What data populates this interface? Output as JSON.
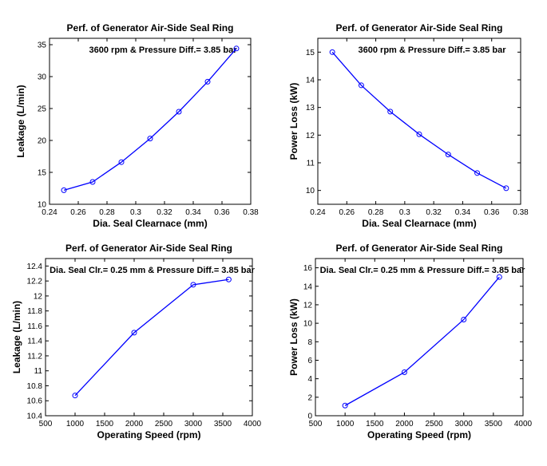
{
  "chart_data": [
    {
      "type": "line",
      "title": "Perf. of Generator Air-Side Seal Ring",
      "annotation": "3600 rpm & Pressure Diff.= 3.85 bar",
      "xlabel": "Dia. Seal Clearnace (mm)",
      "ylabel": "Leakage (L/min)",
      "xlim": [
        0.24,
        0.38
      ],
      "ylim": [
        10,
        36
      ],
      "xticks": [
        0.24,
        0.26,
        0.28,
        0.3,
        0.32,
        0.34,
        0.36,
        0.38
      ],
      "xtick_labels": [
        "0.24",
        "0.26",
        "0.28",
        "0.3",
        "0.32",
        "0.34",
        "0.36",
        "0.38"
      ],
      "yticks": [
        10,
        15,
        20,
        25,
        30,
        35
      ],
      "ytick_labels": [
        "10",
        "15",
        "20",
        "25",
        "30",
        "35"
      ],
      "series": [
        {
          "x": [
            0.25,
            0.27,
            0.29,
            0.31,
            0.33,
            0.35,
            0.37
          ],
          "y": [
            12.2,
            13.5,
            16.6,
            20.3,
            24.5,
            29.2,
            34.4
          ]
        }
      ]
    },
    {
      "type": "line",
      "title": "Perf. of Generator Air-Side Seal Ring",
      "annotation": "3600 rpm & Pressure Diff.= 3.85 bar",
      "xlabel": "Dia. Seal Clearnace (mm)",
      "ylabel": "Power Loss (kW)",
      "xlim": [
        0.24,
        0.38
      ],
      "ylim": [
        9.5,
        15.5
      ],
      "xticks": [
        0.24,
        0.26,
        0.28,
        0.3,
        0.32,
        0.34,
        0.36,
        0.38
      ],
      "xtick_labels": [
        "0.24",
        "0.26",
        "0.28",
        "0.3",
        "0.32",
        "0.34",
        "0.36",
        "0.38"
      ],
      "yticks": [
        10,
        11,
        12,
        13,
        14,
        15
      ],
      "ytick_labels": [
        "10",
        "11",
        "12",
        "13",
        "14",
        "15"
      ],
      "series": [
        {
          "x": [
            0.25,
            0.27,
            0.29,
            0.31,
            0.33,
            0.35,
            0.37
          ],
          "y": [
            15.0,
            13.8,
            12.85,
            12.03,
            11.3,
            10.63,
            10.08
          ]
        }
      ]
    },
    {
      "type": "line",
      "title": "Perf. of Generator Air-Side Seal Ring",
      "annotation": "Dia. Seal Clr.= 0.25 mm & Pressure Diff.= 3.85 bar",
      "xlabel": "Operating Speed (rpm)",
      "ylabel": "Leakage (L/min)",
      "xlim": [
        500,
        4000
      ],
      "ylim": [
        10.4,
        12.5
      ],
      "xticks": [
        500,
        1000,
        1500,
        2000,
        2500,
        3000,
        3500,
        4000
      ],
      "xtick_labels": [
        "500",
        "1000",
        "1500",
        "2000",
        "2500",
        "3000",
        "3500",
        "4000"
      ],
      "yticks": [
        10.4,
        10.6,
        10.8,
        11.0,
        11.2,
        11.4,
        11.6,
        11.8,
        12.0,
        12.2,
        12.4
      ],
      "ytick_labels": [
        "10.4",
        "10.6",
        "10.8",
        "11",
        "11.2",
        "11.4",
        "11.6",
        "11.8",
        "12",
        "12.2",
        "12.4"
      ],
      "series": [
        {
          "x": [
            1000,
            2000,
            3000,
            3600
          ],
          "y": [
            10.67,
            11.51,
            12.15,
            12.22
          ]
        }
      ]
    },
    {
      "type": "line",
      "title": "Perf. of Generator Air-Side Seal Ring",
      "annotation": "Dia. Seal Clr.= 0.25 mm & Pressure Diff.= 3.85 bar",
      "xlabel": "Operating Speed (rpm)",
      "ylabel": "Power Loss (kW)",
      "xlim": [
        500,
        4000
      ],
      "ylim": [
        0,
        17
      ],
      "xticks": [
        500,
        1000,
        1500,
        2000,
        2500,
        3000,
        3500,
        4000
      ],
      "xtick_labels": [
        "500",
        "1000",
        "1500",
        "2000",
        "2500",
        "3000",
        "3500",
        "4000"
      ],
      "yticks": [
        0,
        2,
        4,
        6,
        8,
        10,
        12,
        14,
        16
      ],
      "ytick_labels": [
        "0",
        "2",
        "4",
        "6",
        "8",
        "10",
        "12",
        "14",
        "16"
      ],
      "series": [
        {
          "x": [
            1000,
            2000,
            3000,
            3600
          ],
          "y": [
            1.1,
            4.7,
            10.4,
            15.0
          ]
        }
      ]
    }
  ],
  "colors": {
    "line": "#0000ff",
    "axes": "#000000",
    "background": "#ffffff"
  }
}
